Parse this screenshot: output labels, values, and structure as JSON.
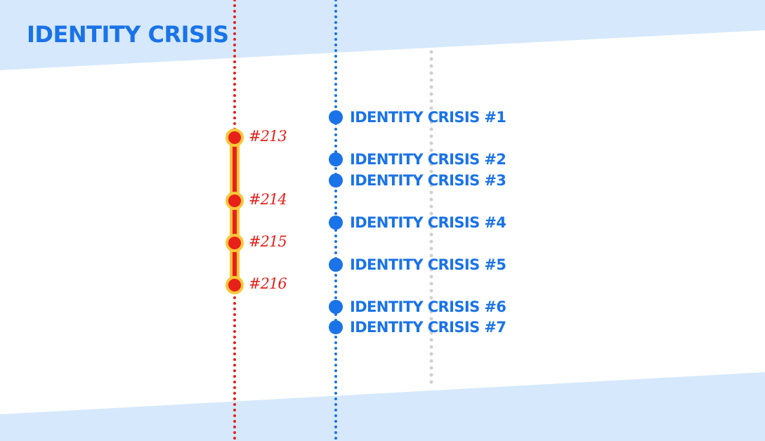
{
  "title": "IDENTITY CRISIS",
  "colors": {
    "band": "#d6e8fc",
    "accent_blue": "#1a73e8",
    "accent_red": "#e8201a",
    "highlight_yellow": "#fbc638",
    "gray_dots": "#d0d0d0"
  },
  "series": {
    "main": {
      "issues": [
        {
          "label": "IDENTITY CRISIS #1",
          "order": 1
        },
        {
          "label": "IDENTITY CRISIS #2",
          "order": 3
        },
        {
          "label": "IDENTITY CRISIS #3",
          "order": 4
        },
        {
          "label": "IDENTITY CRISIS #4",
          "order": 6
        },
        {
          "label": "IDENTITY CRISIS #5",
          "order": 8
        },
        {
          "label": "IDENTITY CRISIS #6",
          "order": 10
        },
        {
          "label": "IDENTITY CRISIS #7",
          "order": 11
        }
      ]
    },
    "tie_in": {
      "issues": [
        {
          "label": "#213",
          "order": 2
        },
        {
          "label": "#214",
          "order": 5
        },
        {
          "label": "#215",
          "order": 7
        },
        {
          "label": "#216",
          "order": 9
        }
      ]
    }
  }
}
